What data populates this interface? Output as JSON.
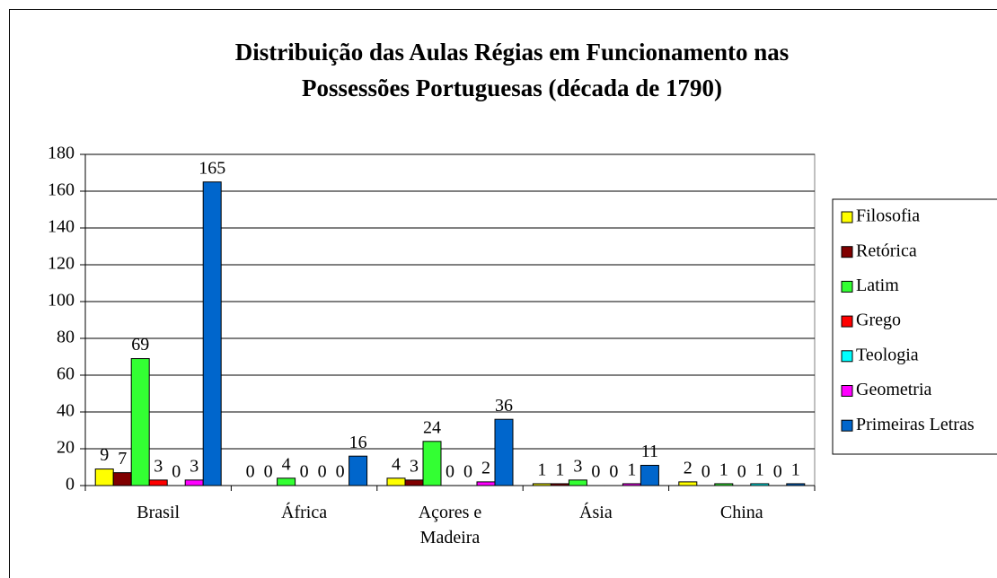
{
  "chart_data": {
    "type": "bar",
    "title": "Distribuição das Aulas Régias em Funcionamento nas Possessões Portuguesas (década de 1790)",
    "categories": [
      "Brasil",
      "África",
      "Açores e Madeira",
      "Ásia",
      "China"
    ],
    "series": [
      {
        "name": "Filosofia",
        "color": "#ffff00",
        "values": [
          9,
          0,
          4,
          1,
          2
        ]
      },
      {
        "name": "Retórica",
        "color": "#800000",
        "values": [
          7,
          0,
          3,
          1,
          0
        ]
      },
      {
        "name": "Latim",
        "color": "#33ff33",
        "values": [
          69,
          4,
          24,
          3,
          1
        ]
      },
      {
        "name": "Grego",
        "color": "#ff0000",
        "values": [
          3,
          0,
          0,
          0,
          0
        ]
      },
      {
        "name": "Teologia",
        "color": "#00ffff",
        "values": [
          0,
          0,
          0,
          0,
          1
        ]
      },
      {
        "name": "Geometria",
        "color": "#ff00ff",
        "values": [
          3,
          0,
          2,
          1,
          0
        ]
      },
      {
        "name": "Primeiras Letras",
        "color": "#0066cc",
        "values": [
          165,
          16,
          36,
          11,
          1
        ]
      }
    ],
    "ylim": [
      0,
      180
    ],
    "yticks": [
      0,
      20,
      40,
      60,
      80,
      100,
      120,
      140,
      160,
      180
    ],
    "grid": true,
    "legend": "right"
  }
}
